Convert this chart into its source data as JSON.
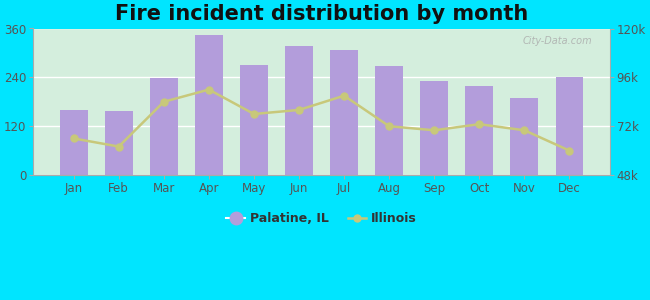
{
  "title": "Fire incident distribution by month",
  "months": [
    "Jan",
    "Feb",
    "Mar",
    "Apr",
    "May",
    "Jun",
    "Jul",
    "Aug",
    "Sep",
    "Oct",
    "Nov",
    "Dec"
  ],
  "palatine_values": [
    160,
    158,
    238,
    345,
    270,
    318,
    308,
    268,
    230,
    218,
    190,
    242
  ],
  "illinois_values": [
    66000,
    62000,
    84000,
    90000,
    78000,
    80000,
    87000,
    72000,
    70000,
    73000,
    70000,
    60000
  ],
  "bar_color": "#b39ddb",
  "line_color": "#c8c87a",
  "line_marker": "o",
  "outer_bg": "#00e5ff",
  "plot_bg_left": "#d4eedd",
  "plot_bg_right": "#eaf6ea",
  "left_ylim": [
    0,
    360
  ],
  "right_ylim": [
    48000,
    120000
  ],
  "left_yticks": [
    0,
    120,
    240,
    360
  ],
  "right_yticks": [
    48000,
    72000,
    96000,
    120000
  ],
  "right_yticklabels": [
    "48k",
    "72k",
    "96k",
    "120k"
  ],
  "title_fontsize": 15,
  "legend_palatine": "Palatine, IL",
  "legend_illinois": "Illinois",
  "watermark": "City-Data.com"
}
